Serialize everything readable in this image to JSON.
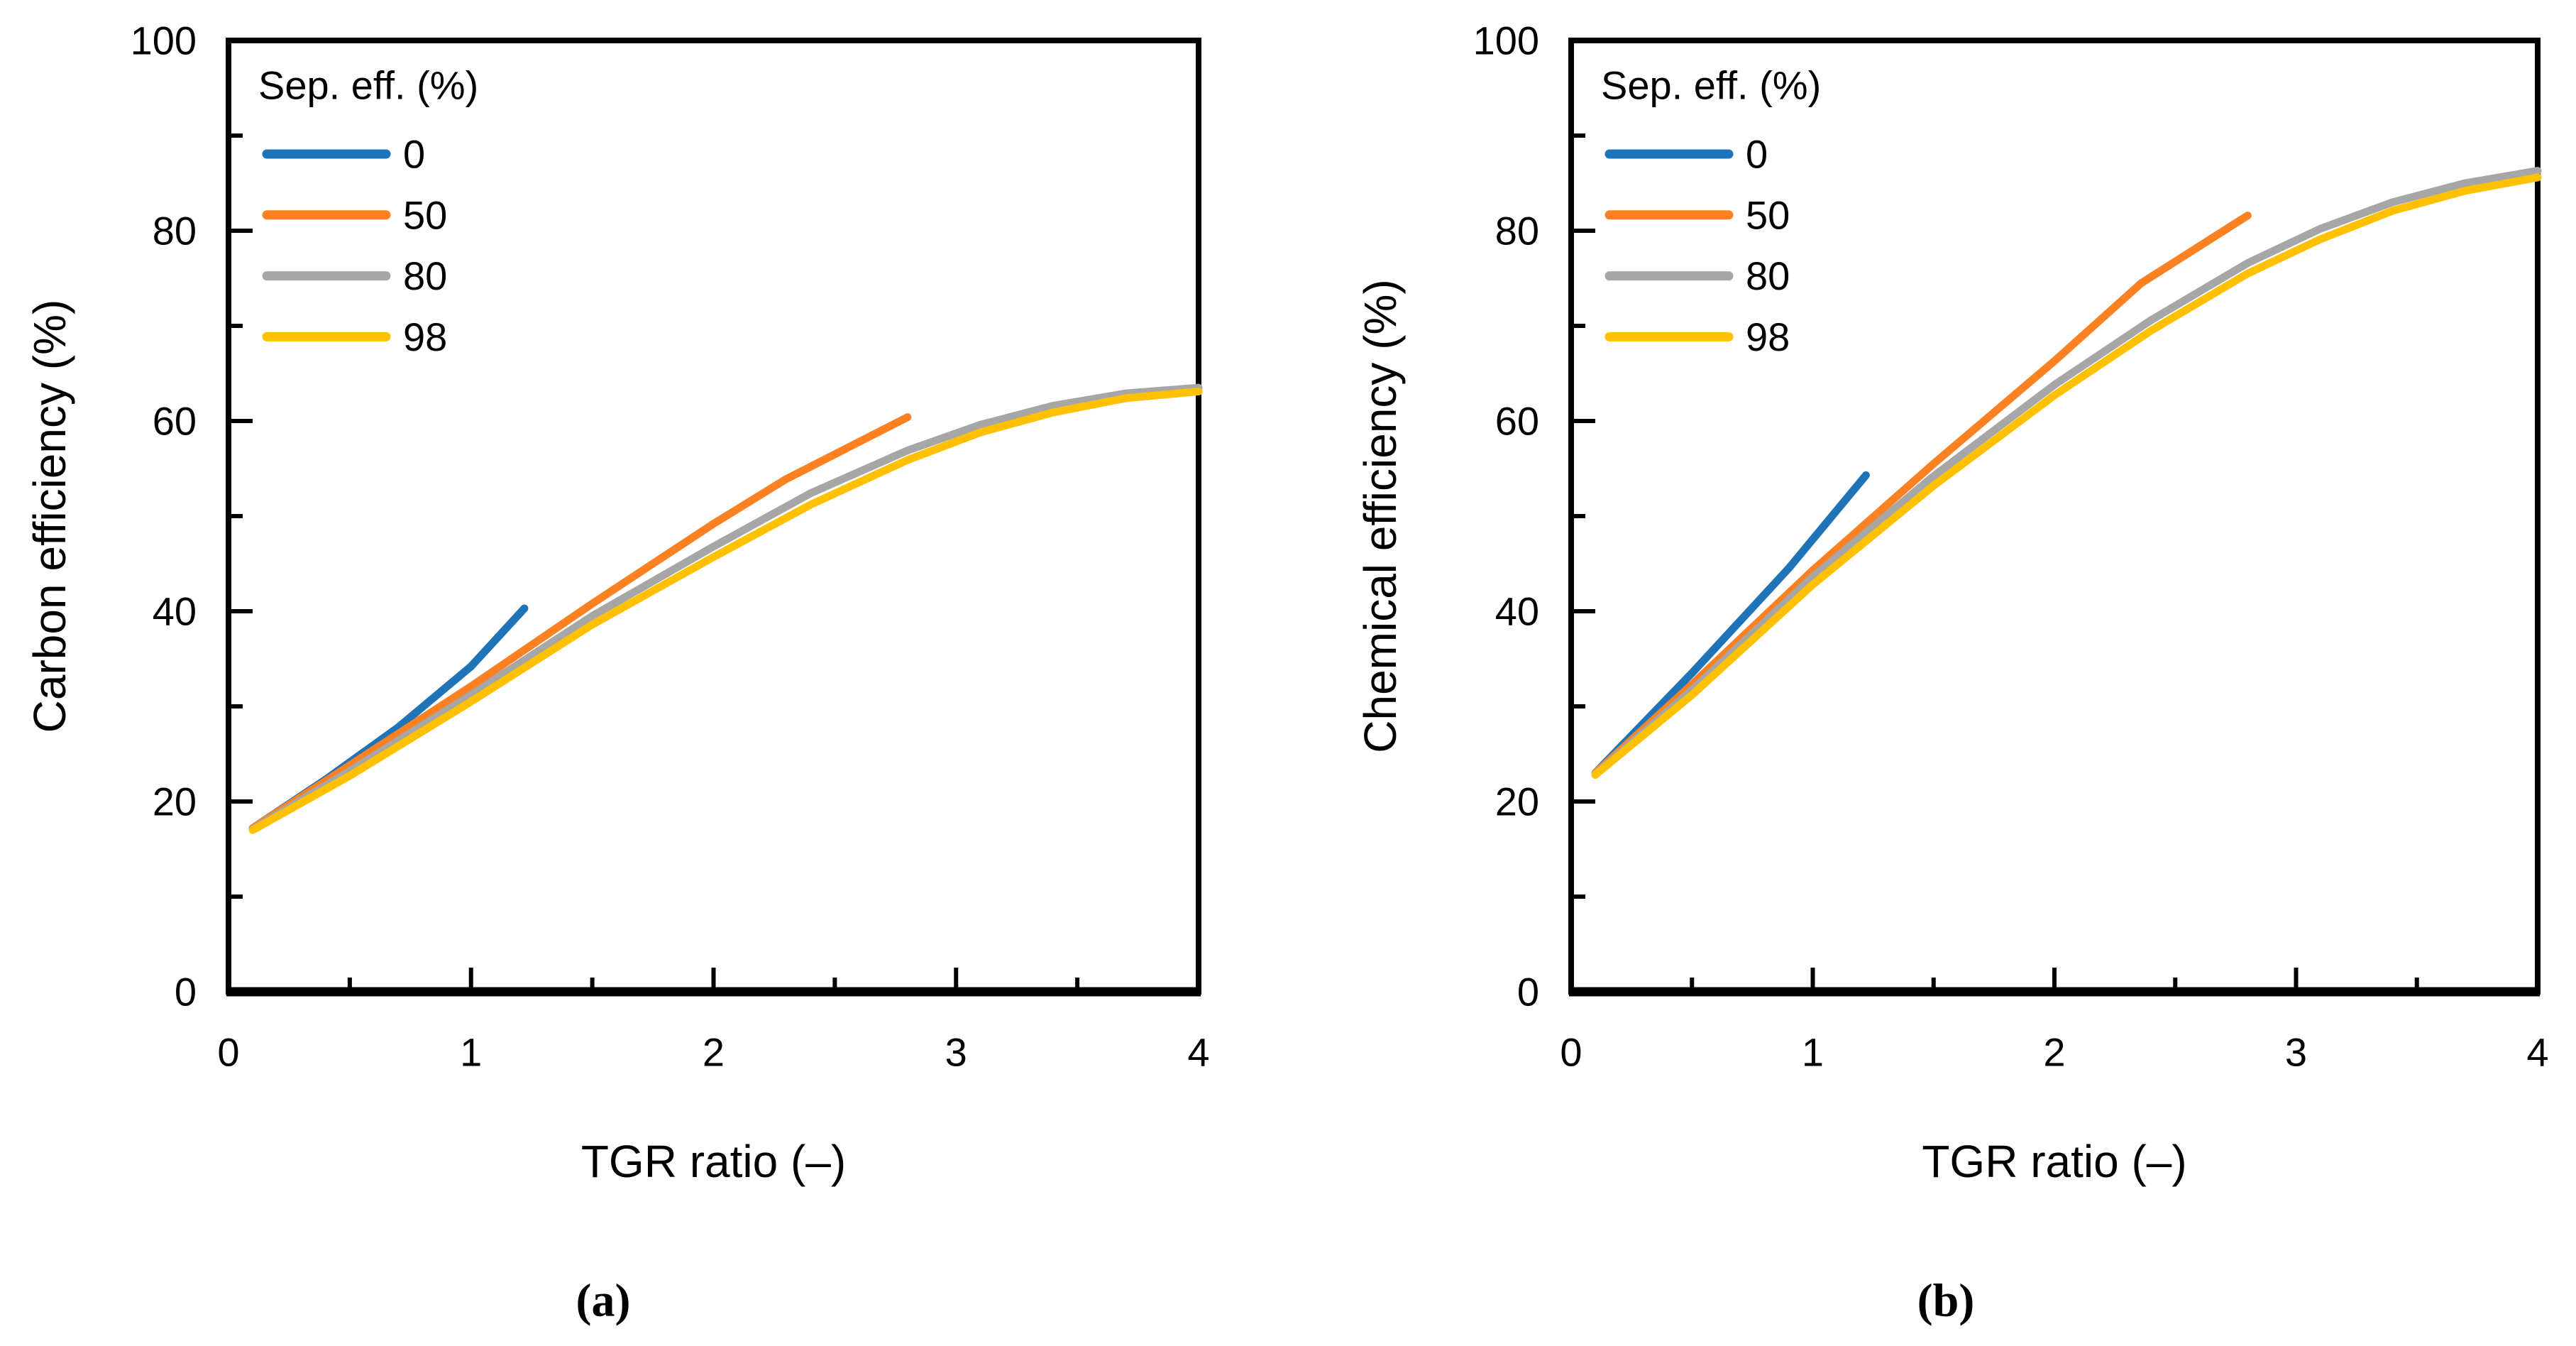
{
  "figure": {
    "background": "#ffffff",
    "axis_color": "#000000"
  },
  "chart_data": [
    {
      "id": "a",
      "type": "line",
      "sublabel": "(a)",
      "xlabel": "TGR ratio (–)",
      "ylabel": "Carbon efficiency (%)",
      "legend_title": "Sep. eff. (%)",
      "legend_position": "top-left-inside",
      "grid": false,
      "xlim": [
        0,
        4
      ],
      "ylim": [
        0,
        100
      ],
      "xticks": [
        0,
        1,
        2,
        3,
        4
      ],
      "yticks": [
        0,
        20,
        40,
        60,
        80,
        100
      ],
      "x_minor_step": 0.5,
      "y_minor_step": 10,
      "series": [
        {
          "name": "0",
          "color": "#1F73B7",
          "points": [
            [
              0.1,
              17.2
            ],
            [
              0.4,
              22.3
            ],
            [
              0.7,
              27.8
            ],
            [
              1.0,
              34.2
            ],
            [
              1.22,
              40.3
            ]
          ]
        },
        {
          "name": "50",
          "color": "#FB8122",
          "points": [
            [
              0.1,
              17.2
            ],
            [
              0.5,
              23.8
            ],
            [
              1.0,
              32.1
            ],
            [
              1.5,
              40.8
            ],
            [
              2.0,
              49.2
            ],
            [
              2.3,
              53.9
            ],
            [
              2.6,
              57.8
            ],
            [
              2.8,
              60.4
            ]
          ]
        },
        {
          "name": "80",
          "color": "#A6A6A6",
          "points": [
            [
              0.1,
              17.1
            ],
            [
              0.5,
              23.2
            ],
            [
              1.0,
              31.2
            ],
            [
              1.5,
              39.5
            ],
            [
              2.0,
              46.8
            ],
            [
              2.4,
              52.4
            ],
            [
              2.8,
              56.9
            ],
            [
              3.1,
              59.6
            ],
            [
              3.4,
              61.6
            ],
            [
              3.7,
              62.9
            ],
            [
              4.0,
              63.5
            ]
          ]
        },
        {
          "name": "98",
          "color": "#FFC000",
          "points": [
            [
              0.1,
              17.0
            ],
            [
              0.5,
              22.7
            ],
            [
              1.0,
              30.5
            ],
            [
              1.5,
              38.6
            ],
            [
              2.0,
              45.7
            ],
            [
              2.4,
              51.2
            ],
            [
              2.8,
              55.9
            ],
            [
              3.1,
              58.8
            ],
            [
              3.4,
              60.9
            ],
            [
              3.7,
              62.4
            ],
            [
              4.0,
              63.1
            ]
          ]
        }
      ]
    },
    {
      "id": "b",
      "type": "line",
      "sublabel": "(b)",
      "xlabel": "TGR ratio (–)",
      "ylabel": "Chemical efficiency (%)",
      "legend_title": "Sep. eff. (%)",
      "legend_position": "top-left-inside",
      "grid": false,
      "xlim": [
        0,
        4
      ],
      "ylim": [
        0,
        100
      ],
      "xticks": [
        0,
        1,
        2,
        3,
        4
      ],
      "yticks": [
        0,
        20,
        40,
        60,
        80,
        100
      ],
      "x_minor_step": 0.5,
      "y_minor_step": 10,
      "series": [
        {
          "name": "0",
          "color": "#1F73B7",
          "points": [
            [
              0.1,
              23.0
            ],
            [
              0.5,
              33.5
            ],
            [
              0.9,
              44.5
            ],
            [
              1.22,
              54.3
            ]
          ]
        },
        {
          "name": "50",
          "color": "#FB8122",
          "points": [
            [
              0.1,
              23.0
            ],
            [
              0.5,
              32.3
            ],
            [
              1.0,
              44.3
            ],
            [
              1.5,
              55.5
            ],
            [
              2.0,
              66.3
            ],
            [
              2.36,
              74.5
            ],
            [
              2.8,
              81.6
            ]
          ]
        },
        {
          "name": "80",
          "color": "#A6A6A6",
          "points": [
            [
              0.1,
              22.9
            ],
            [
              0.5,
              31.7
            ],
            [
              1.0,
              43.6
            ],
            [
              1.5,
              54.2
            ],
            [
              2.0,
              63.8
            ],
            [
              2.4,
              70.6
            ],
            [
              2.8,
              76.6
            ],
            [
              3.1,
              80.2
            ],
            [
              3.4,
              83.0
            ],
            [
              3.7,
              85.0
            ],
            [
              4.0,
              86.3
            ]
          ]
        },
        {
          "name": "98",
          "color": "#FFC000",
          "points": [
            [
              0.1,
              22.8
            ],
            [
              0.5,
              31.2
            ],
            [
              1.0,
              42.8
            ],
            [
              1.5,
              53.2
            ],
            [
              2.0,
              62.7
            ],
            [
              2.4,
              69.5
            ],
            [
              2.8,
              75.5
            ],
            [
              3.1,
              79.1
            ],
            [
              3.4,
              82.1
            ],
            [
              3.7,
              84.2
            ],
            [
              4.0,
              85.6
            ]
          ]
        }
      ]
    }
  ]
}
